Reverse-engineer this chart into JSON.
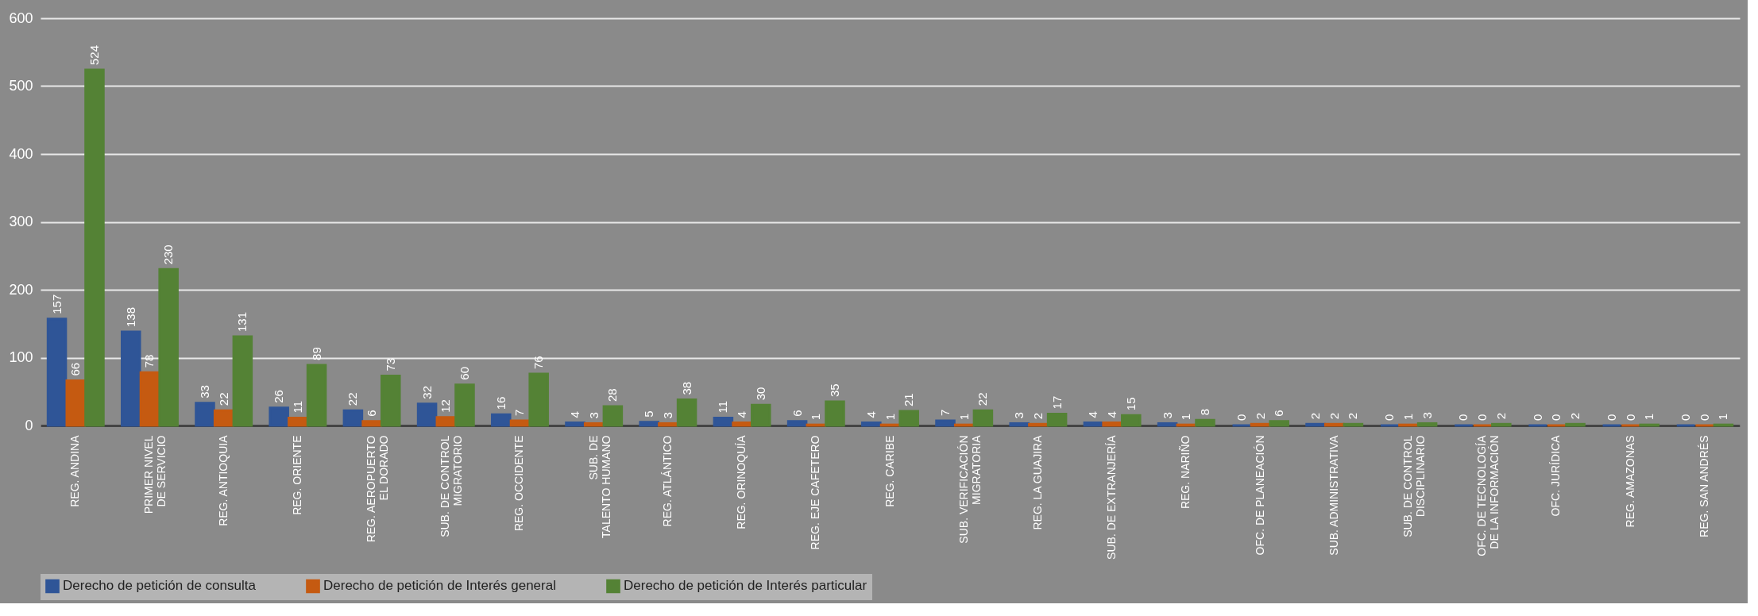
{
  "chart_data": {
    "type": "bar",
    "categories": [
      "REG. ANDINA",
      "PRIMER NIVEL DE SERVICIO",
      "REG. ANTIOQUIA",
      "REG. ORIENTE",
      "REG. AEROPUERTO EL DORADO",
      "SUB. DE CONTROL MIGRATORIO",
      "REG. OCCIDENTE",
      "SUB. DE TALENTO HUMANO",
      "REG. ATLÁNTICO",
      "REG. ORINOQUÍA",
      "REG. EJE CAFETERO",
      "REG. CARIBE",
      "SUB. VERIFICACIÓN MIGRATORIA",
      "REG. LA GUAJIRA",
      "SUB. DE EXTRANJERÍA",
      "REG. NARIÑO",
      "OFC. DE PLANEACIÓN",
      "SUB. ADMINISTRATIVA",
      "SUB. DE CONTROL DISCIPLINARIO",
      "OFC. DE TECNOLOGÍA DE LA INFORMACIÓN",
      "OFC. JURÍDICA",
      "REG. AMAZONAS",
      "REG. SAN ANDRÉS"
    ],
    "series": [
      {
        "name": "Derecho de petición de consulta",
        "color": "#2f5597",
        "values": [
          157,
          138,
          33,
          26,
          22,
          32,
          16,
          4,
          5,
          11,
          6,
          4,
          7,
          3,
          4,
          3,
          0,
          2,
          0,
          0,
          0,
          0,
          0
        ]
      },
      {
        "name": "Derecho de petición de Interés general",
        "color": "#c55a11",
        "values": [
          66,
          78,
          22,
          11,
          6,
          12,
          7,
          3,
          3,
          4,
          1,
          1,
          1,
          2,
          4,
          1,
          2,
          2,
          1,
          0,
          0,
          0,
          0
        ]
      },
      {
        "name": "Derecho de petición de Interés particular",
        "color": "#548235",
        "values": [
          524,
          230,
          131,
          89,
          73,
          60,
          76,
          28,
          38,
          30,
          35,
          21,
          22,
          17,
          15,
          8,
          6,
          2,
          3,
          2,
          2,
          1,
          1
        ]
      }
    ],
    "ylim": [
      0,
      600
    ],
    "yticks": [
      0,
      100,
      200,
      300,
      400,
      500,
      600
    ],
    "grid": "y",
    "legend": "bottom",
    "data_labels": true
  }
}
